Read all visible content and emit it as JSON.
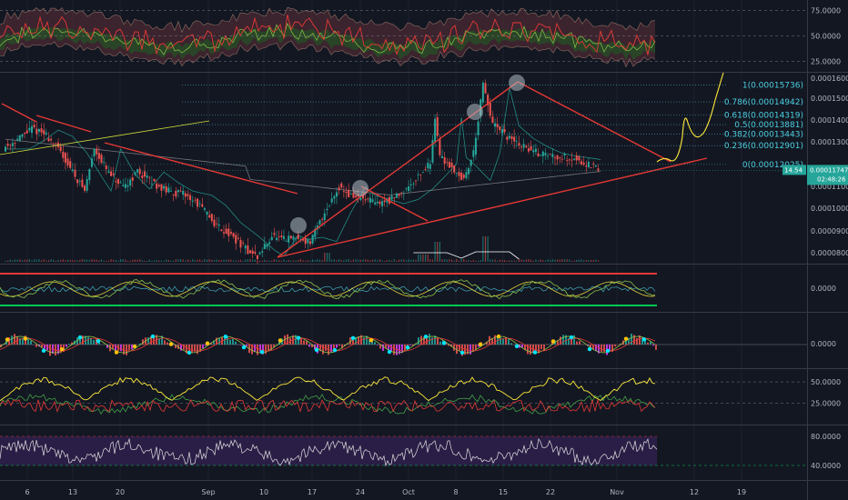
{
  "chart_data": {
    "type": "line",
    "title": "",
    "colors": {
      "background": "#131722",
      "up_candle": "#26a69a",
      "down_candle": "#ef5350",
      "trendline": "#e53935",
      "fib_line": "#4dd0e1",
      "projection": "#ffeb3b",
      "rsi_band": "#2d1f4a",
      "grid": "#2a2e39"
    },
    "x_axis": {
      "ticks": [
        "6",
        "13",
        "20",
        "Sep",
        "10",
        "17",
        "24",
        "Oct",
        "8",
        "15",
        "22",
        "Nov",
        "12",
        "19"
      ]
    },
    "panels": {
      "top_oscillator": {
        "y_ticks": [
          "75.0000",
          "50.0000",
          "25.0000"
        ],
        "ylim": [
          15,
          85
        ]
      },
      "price": {
        "y_ticks": [
          "0.00016000",
          "0.00015000",
          "0.00014000",
          "0.00013000",
          "0.00011000",
          "0.00010000",
          "0.00009000",
          "0.00008000"
        ],
        "ylim": [
          7.4e-05,
          0.000163
        ],
        "current_price": "0.00011747",
        "current_price_tag": "14.54",
        "countdown": "02:48:26",
        "fib_levels": [
          {
            "label": "1(0.00015736)",
            "value": 0.00015736
          },
          {
            "label": "0.786(0.00014942)",
            "value": 0.00014942
          },
          {
            "label": "0.618(0.00014319)",
            "value": 0.00014319
          },
          {
            "label": "0.5(0.00013881)",
            "value": 0.00013881
          },
          {
            "label": "0.382(0.00013443)",
            "value": 0.00013443
          },
          {
            "label": "0.236(0.00012901)",
            "value": 0.00012901
          },
          {
            "label": "0(0.00012025)",
            "value": 0.00012025
          }
        ]
      },
      "osc2": {
        "y_ticks": [
          "0.0000"
        ]
      },
      "osc3": {
        "y_ticks": [
          "0.0000"
        ]
      },
      "osc4": {
        "y_ticks": [
          "50.0000",
          "25.0000"
        ],
        "ylim": [
          0,
          65
        ]
      },
      "rsi": {
        "y_ticks": [
          "80.0000",
          "40.0000"
        ],
        "ylim": [
          20,
          95
        ]
      }
    }
  }
}
